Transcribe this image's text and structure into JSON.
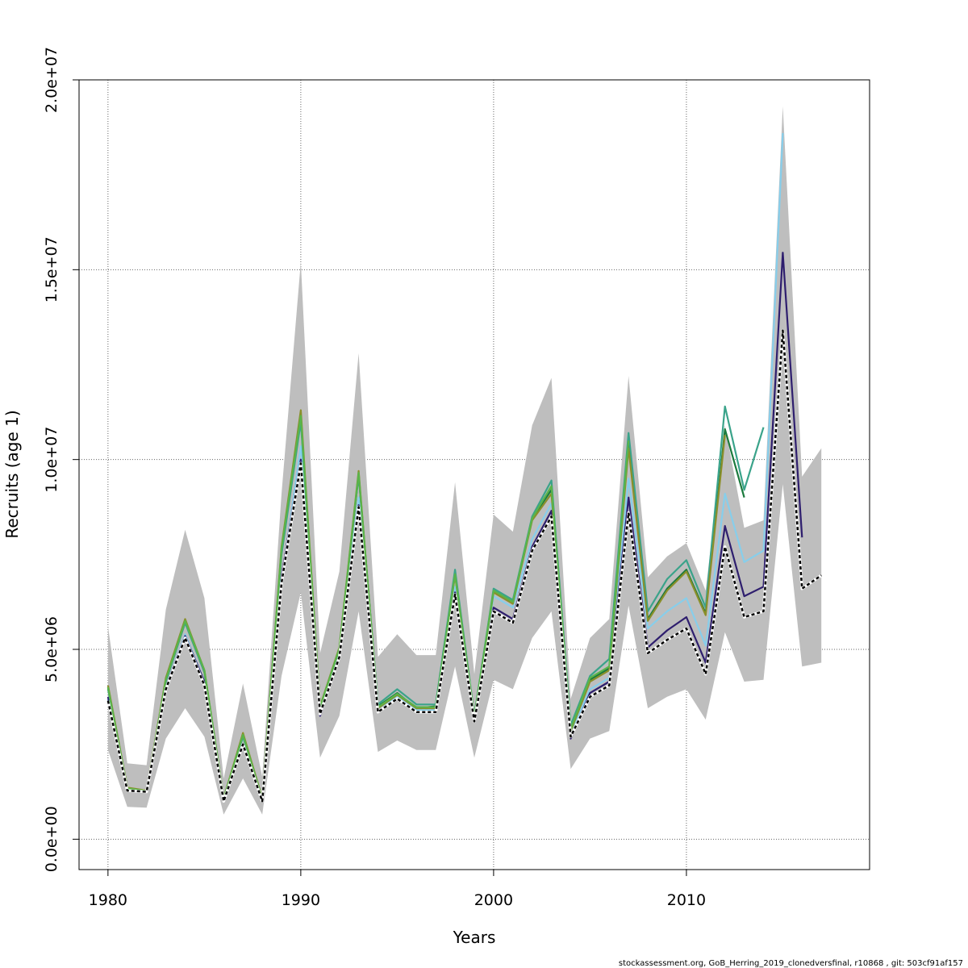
{
  "chart_data": {
    "type": "line",
    "xlabel": "Years",
    "ylabel": "Recruits (age 1)",
    "xlim": [
      1978.5,
      2019.5
    ],
    "ylim": [
      -800000,
      20000000
    ],
    "x_ticks": [
      1980,
      1990,
      2000,
      2010
    ],
    "x_tick_labels": [
      "1980",
      "1990",
      "2000",
      "2010"
    ],
    "y_ticks": [
      0,
      5000000,
      10000000,
      15000000,
      20000000
    ],
    "y_tick_labels": [
      "0.0e+00",
      "5.0e+06",
      "1.0e+07",
      "1.5e+07",
      "2.0e+07"
    ],
    "grid": true,
    "band": {
      "color": "#bebebe",
      "x": [
        1980,
        1981,
        1982,
        1983,
        1984,
        1985,
        1986,
        1987,
        1988,
        1989,
        1990,
        1991,
        1992,
        1993,
        1994,
        1995,
        1996,
        1997,
        1998,
        1999,
        2000,
        2001,
        2002,
        2003,
        2004,
        2005,
        2006,
        2007,
        2008,
        2009,
        2010,
        2011,
        2012,
        2013,
        2014,
        2015,
        2016,
        2017
      ],
      "upper": [
        5600000,
        2000000,
        1950000,
        6050000,
        8150000,
        6350000,
        1600000,
        4100000,
        1650000,
        9100000,
        15200000,
        4900000,
        7050000,
        12800000,
        4800000,
        5400000,
        4850000,
        4850000,
        9400000,
        4350000,
        8550000,
        8100000,
        10900000,
        12150000,
        3700000,
        5300000,
        5800000,
        12200000,
        6900000,
        7450000,
        7800000,
        6550000,
        10900000,
        8200000,
        8400000,
        19300000,
        9550000,
        10300000
      ],
      "lower": [
        2350000,
        850000,
        830000,
        2650000,
        3450000,
        2700000,
        650000,
        1600000,
        650000,
        4300000,
        6500000,
        2150000,
        3250000,
        6000000,
        2300000,
        2600000,
        2350000,
        2350000,
        4550000,
        2150000,
        4200000,
        3950000,
        5300000,
        6000000,
        1850000,
        2650000,
        2850000,
        6150000,
        3450000,
        3750000,
        3950000,
        3150000,
        5450000,
        4150000,
        4200000,
        9350000,
        4550000,
        4650000
      ]
    },
    "series": [
      {
        "color": "#87ceeb",
        "x": [
          1980,
          1981,
          1982,
          1983,
          1984,
          1985,
          1986,
          1987,
          1988,
          1989,
          1990,
          1991,
          1992,
          1993,
          1994,
          1995,
          1996,
          1997,
          1998,
          1999,
          2000,
          2001,
          2002,
          2003,
          2004,
          2005,
          2006,
          2007,
          2008,
          2009,
          2010,
          2011,
          2012,
          2013,
          2014,
          2015
        ],
        "values": [
          3700000,
          1280000,
          1250000,
          4000000,
          5400000,
          4150000,
          1020000,
          2500000,
          1000000,
          6800000,
          10350000,
          3350000,
          4850000,
          9000000,
          3450000,
          3750000,
          3400000,
          3400000,
          6650000,
          3150000,
          6400000,
          6100000,
          7900000,
          8850000,
          2800000,
          3950000,
          4250000,
          9500000,
          5550000,
          6000000,
          6350000,
          5100000,
          9100000,
          7300000,
          7600000,
          18600000
        ]
      },
      {
        "color": "#2e1e6e",
        "x": [
          1980,
          1981,
          1982,
          1983,
          1984,
          1985,
          1986,
          1987,
          1988,
          1989,
          1990,
          1991,
          1992,
          1993,
          1994,
          1995,
          1996,
          1997,
          1998,
          1999,
          2000,
          2001,
          2002,
          2003,
          2004,
          2005,
          2006,
          2007,
          2008,
          2009,
          2010,
          2011,
          2012,
          2013,
          2014,
          2015,
          2016
        ],
        "values": [
          3750000,
          1280000,
          1250000,
          4000000,
          5350000,
          4150000,
          1020000,
          2500000,
          1000000,
          6900000,
          10000000,
          3250000,
          4800000,
          8800000,
          3350000,
          3700000,
          3350000,
          3350000,
          6500000,
          3100000,
          6100000,
          5800000,
          7700000,
          8650000,
          2650000,
          3850000,
          4150000,
          9000000,
          5050000,
          5500000,
          5850000,
          4650000,
          8250000,
          6400000,
          6650000,
          15450000,
          7950000
        ]
      },
      {
        "color": "#1b7a3d",
        "x": [
          1980,
          1981,
          1982,
          1983,
          1984,
          1985,
          1986,
          1987,
          1988,
          1989,
          1990,
          1991,
          1992,
          1993,
          1994,
          1995,
          1996,
          1997,
          1998,
          1999,
          2000,
          2001,
          2002,
          2003,
          2004,
          2005,
          2006,
          2007,
          2008,
          2009,
          2010,
          2011,
          2012,
          2013
        ],
        "values": [
          4000000,
          1350000,
          1270000,
          4200000,
          5750000,
          4400000,
          1070000,
          2750000,
          1070000,
          7600000,
          11100000,
          3450000,
          5000000,
          9600000,
          3500000,
          3850000,
          3450000,
          3500000,
          7000000,
          3200000,
          6550000,
          6250000,
          8450000,
          9200000,
          2900000,
          4200000,
          4500000,
          10400000,
          5800000,
          6600000,
          7100000,
          5950000,
          10800000,
          9000000
        ]
      },
      {
        "color": "#3aa38a",
        "x": [
          1980,
          1981,
          1982,
          1983,
          1984,
          1985,
          1986,
          1987,
          1988,
          1989,
          1990,
          1991,
          1992,
          1993,
          1994,
          1995,
          1996,
          1997,
          1998,
          1999,
          2000,
          2001,
          2002,
          2003,
          2004,
          2005,
          2006,
          2007,
          2008,
          2009,
          2010,
          2011,
          2012,
          2013,
          2014
        ],
        "values": [
          3950000,
          1330000,
          1260000,
          4150000,
          5700000,
          4400000,
          1060000,
          2700000,
          1050000,
          7500000,
          11000000,
          3450000,
          5000000,
          9600000,
          3550000,
          3950000,
          3550000,
          3550000,
          7100000,
          3250000,
          6600000,
          6300000,
          8500000,
          9450000,
          3000000,
          4300000,
          4750000,
          10700000,
          6000000,
          6850000,
          7350000,
          6100000,
          11400000,
          9200000,
          10850000
        ]
      },
      {
        "color": "#8a8f2a",
        "x": [
          1980,
          1981,
          1982,
          1983,
          1984,
          1985,
          1986,
          1987,
          1988,
          1989,
          1990,
          1991,
          1992,
          1993,
          1994,
          1995,
          1996,
          1997,
          1998,
          1999,
          2000,
          2001,
          2002,
          2003,
          2004,
          2005,
          2006,
          2007,
          2008,
          2009,
          2010,
          2011,
          2012
        ],
        "values": [
          4050000,
          1360000,
          1280000,
          4250000,
          5800000,
          4450000,
          1080000,
          2800000,
          1080000,
          7700000,
          11300000,
          3500000,
          5050000,
          9700000,
          3450000,
          3800000,
          3450000,
          3450000,
          6950000,
          3200000,
          6500000,
          6200000,
          8400000,
          9100000,
          2850000,
          4150000,
          4450000,
          10300000,
          5750000,
          6550000,
          7050000,
          5900000,
          10650000
        ]
      },
      {
        "color": "#5ab44a",
        "x": [
          1980,
          1981,
          1982,
          1983,
          1984,
          1985,
          1986,
          1987,
          1988,
          1989,
          1990,
          1991,
          1992,
          1993,
          1994,
          1995,
          1996,
          1997,
          1998,
          1999,
          2000,
          2001,
          2002,
          2003,
          2004,
          2005,
          2006,
          2007
        ],
        "values": [
          4000000,
          1340000,
          1270000,
          4200000,
          5750000,
          4450000,
          1070000,
          2750000,
          1060000,
          7650000,
          11150000,
          3480000,
          5020000,
          9650000,
          3480000,
          3830000,
          3480000,
          3480000,
          6980000,
          3220000,
          6550000,
          6250000,
          8450000,
          9300000,
          2900000,
          4250000,
          4550000,
          10500000
        ]
      },
      {
        "color": "#000000",
        "dashed": true,
        "x": [
          1980,
          1981,
          1982,
          1983,
          1984,
          1985,
          1986,
          1987,
          1988,
          1989,
          1990,
          1991,
          1992,
          1993,
          1994,
          1995,
          1996,
          1997,
          1998,
          1999,
          2000,
          2001,
          2002,
          2003,
          2004,
          2005,
          2006,
          2007,
          2008,
          2009,
          2010,
          2011,
          2012,
          2013,
          2014,
          2015,
          2016,
          2017
        ],
        "values": [
          3650000,
          1280000,
          1250000,
          3950000,
          5300000,
          4050000,
          1000000,
          2500000,
          1000000,
          6750000,
          9900000,
          3300000,
          4800000,
          8750000,
          3350000,
          3700000,
          3350000,
          3350000,
          6450000,
          3100000,
          6000000,
          5700000,
          7600000,
          8500000,
          2700000,
          3750000,
          4050000,
          8600000,
          4900000,
          5250000,
          5550000,
          4350000,
          7700000,
          5850000,
          6000000,
          13400000,
          6600000,
          6950000
        ]
      }
    ]
  },
  "footer": "stockassessment.org, GoB_Herring_2019_clonedversfinal, r10868 , git: 503cf91af157"
}
